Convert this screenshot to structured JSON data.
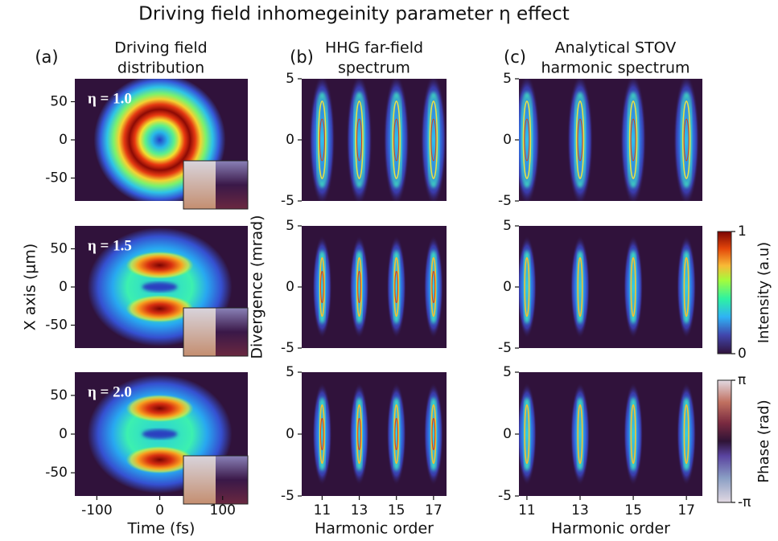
{
  "title": "Driving field inhomegeinity parameter η effect",
  "columns": [
    {
      "label": "(a)",
      "title": [
        "Driving field",
        "distribution"
      ]
    },
    {
      "label": "(b)",
      "title": [
        "HHG far-field",
        "spectrum"
      ]
    },
    {
      "label": "(c)",
      "title": [
        "Analytical STOV",
        "harmonic spectrum"
      ]
    }
  ],
  "chart_data": [
    {
      "type": "heatmap",
      "annotation": "η = 1.0",
      "xlim": [
        -135,
        140
      ],
      "ylim": [
        -80,
        80
      ],
      "yticks": [
        -50,
        0,
        50
      ]
    },
    {
      "type": "heatmap",
      "annotation": "η = 1.5",
      "xlim": [
        -135,
        140
      ],
      "ylim": [
        -80,
        80
      ],
      "yticks": [
        -50,
        0,
        50
      ],
      "ylabel": "X axis (μm)"
    },
    {
      "type": "heatmap",
      "annotation": "η = 2.0",
      "xlim": [
        -135,
        140
      ],
      "ylim": [
        -80,
        80
      ],
      "yticks": [
        -50,
        0,
        50
      ],
      "xticks": [
        -100,
        0,
        100
      ],
      "xlabel": "Time (fs)"
    },
    {
      "type": "heatmap",
      "xlim": [
        9.9,
        17.7
      ],
      "ylim": [
        -5,
        5
      ],
      "yticks": [
        -5,
        0,
        5
      ]
    },
    {
      "type": "heatmap",
      "xlim": [
        9.9,
        17.7
      ],
      "ylim": [
        -5,
        5
      ],
      "yticks": [
        -5,
        0,
        5
      ],
      "ylabel": "Divergence (mrad)"
    },
    {
      "type": "heatmap",
      "xlim": [
        9.9,
        17.7
      ],
      "ylim": [
        -5,
        5
      ],
      "yticks": [
        -5,
        0,
        5
      ],
      "xticks": [
        11,
        13,
        15,
        17
      ],
      "xlabel": "Harmonic order"
    },
    {
      "type": "heatmap",
      "xlim": [
        10.7,
        17.6
      ],
      "ylim": [
        -5,
        5
      ],
      "yticks": [
        -5,
        0,
        5
      ]
    },
    {
      "type": "heatmap",
      "xlim": [
        10.7,
        17.6
      ],
      "ylim": [
        -5,
        5
      ],
      "yticks": [
        -5,
        0,
        5
      ]
    },
    {
      "type": "heatmap",
      "xlim": [
        10.7,
        17.6
      ],
      "ylim": [
        -5,
        5
      ],
      "yticks": [
        -5,
        0,
        5
      ],
      "xticks": [
        11,
        13,
        15,
        17
      ],
      "xlabel": "Harmonic order"
    }
  ],
  "colorbars": [
    {
      "label": "Intensity (a.u)",
      "lim": [
        0,
        1
      ],
      "ticks": [
        0,
        1
      ]
    },
    {
      "label": "Phase (rad)",
      "lim": [
        -3.1416,
        3.1416
      ],
      "ticks": [
        {
          "value": -3.1416,
          "label": "-π"
        },
        {
          "value": 3.1416,
          "label": "π"
        }
      ]
    }
  ]
}
